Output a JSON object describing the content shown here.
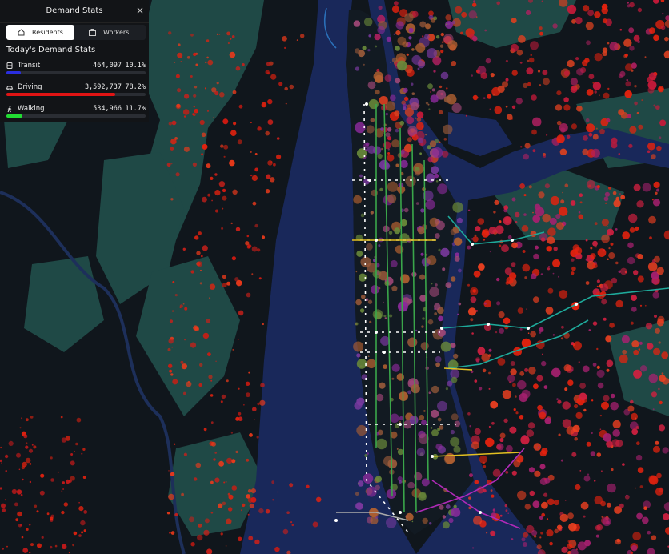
{
  "panel": {
    "title": "Demand Stats",
    "close": "×",
    "tabs": [
      "Residents",
      "Workers"
    ],
    "heading": "Today's Demand Stats",
    "rows": [
      {
        "name": "Transit",
        "count": {
          "value": 464097,
          "label": "464,097"
        },
        "share": {
          "value": 10.1,
          "label": "10.1%"
        },
        "color": "#2a2ee0"
      },
      {
        "name": "Driving",
        "count": {
          "value": 3592737,
          "label": "3,592,737"
        },
        "share": {
          "value": 78.2,
          "label": "78.2%"
        },
        "color": "#e01414"
      },
      {
        "name": "Walking",
        "count": {
          "value": 534966,
          "label": "534,966"
        },
        "share": {
          "value": 11.7,
          "label": "11.7%"
        },
        "color": "#22dd33"
      }
    ]
  }
}
